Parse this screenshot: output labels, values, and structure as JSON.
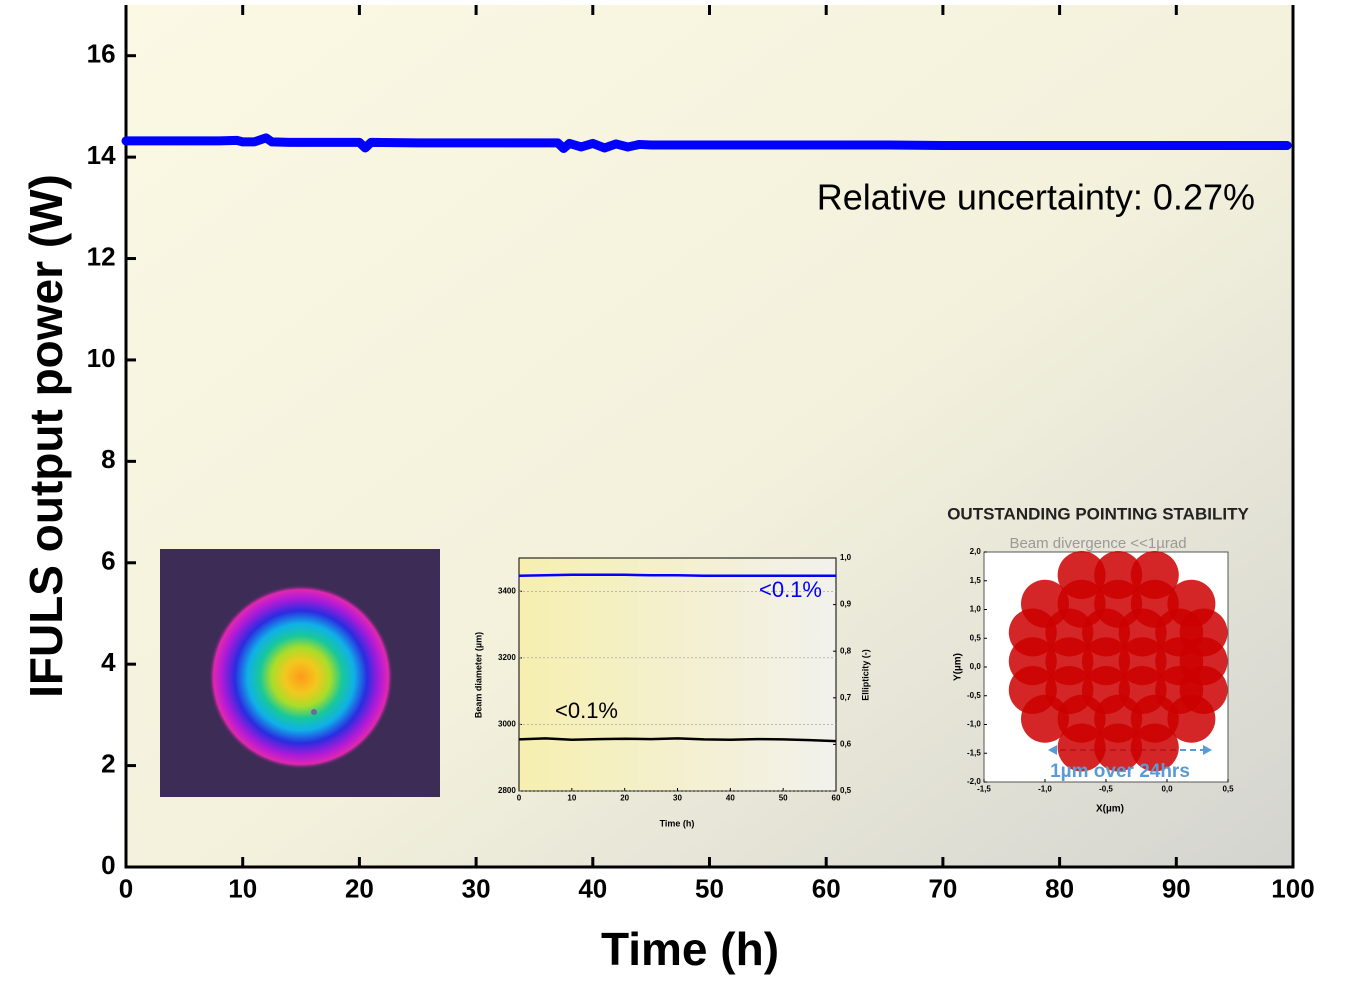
{
  "chart_data": [
    {
      "type": "line",
      "xlabel": "Time (h)",
      "ylabel": "IFULS output power (W)",
      "annotation": "Relative uncertainty: 0.27%",
      "xlim": [
        0,
        100
      ],
      "ylim": [
        0,
        17
      ],
      "xticks": [
        0,
        10,
        20,
        30,
        40,
        50,
        60,
        70,
        80,
        90,
        100
      ],
      "yticks": [
        0,
        2,
        4,
        6,
        8,
        10,
        12,
        14,
        16
      ],
      "series": [
        {
          "color": "#0000ff",
          "x": [
            0,
            2,
            4,
            6,
            8,
            9.5,
            10,
            11,
            12,
            12.5,
            14,
            16,
            18,
            20,
            20.5,
            21,
            25,
            30,
            35,
            37,
            37.5,
            38,
            39,
            40,
            41,
            42,
            43,
            44,
            45,
            50,
            55,
            60,
            65,
            70,
            75,
            80,
            85,
            90,
            95,
            99.5
          ],
          "values": [
            14.32,
            14.32,
            14.32,
            14.32,
            14.32,
            14.33,
            14.3,
            14.3,
            14.38,
            14.3,
            14.29,
            14.29,
            14.29,
            14.29,
            14.18,
            14.29,
            14.28,
            14.28,
            14.28,
            14.28,
            14.17,
            14.27,
            14.2,
            14.27,
            14.18,
            14.26,
            14.2,
            14.25,
            14.24,
            14.24,
            14.24,
            14.24,
            14.24,
            14.23,
            14.23,
            14.23,
            14.23,
            14.23,
            14.23,
            14.23
          ]
        }
      ]
    },
    {
      "type": "dual-line",
      "xlabel": "Time (h)",
      "ylabel": "Beam diameter (µm)",
      "y2label": "Ellipticity (-)",
      "annotations": [
        "<0.1%",
        "<0.1%"
      ],
      "x": [
        0,
        5,
        10,
        15,
        20,
        25,
        30,
        35,
        40,
        45,
        50,
        55,
        60
      ],
      "xlim": [
        0,
        60
      ],
      "xticks": [
        0,
        10,
        20,
        30,
        40,
        50,
        60
      ],
      "ylim": [
        2800,
        3500
      ],
      "yticks": [
        2800,
        3000,
        3200,
        3400
      ],
      "y2lim": [
        0.5,
        1.0
      ],
      "y2ticks": [
        {
          "value": 0.5,
          "label": "0,5"
        },
        {
          "value": 0.6,
          "label": "0,6"
        },
        {
          "value": 0.7,
          "label": "0,7"
        },
        {
          "value": 0.8,
          "label": "0,8"
        },
        {
          "value": 0.9,
          "label": "0,9"
        },
        {
          "value": 1.0,
          "label": "1,0"
        }
      ],
      "series": [
        {
          "color": "#0000ff",
          "axis": "y2",
          "values": [
            0.962,
            0.963,
            0.964,
            0.964,
            0.964,
            0.963,
            0.963,
            0.962,
            0.962,
            0.962,
            0.962,
            0.962,
            0.962
          ]
        },
        {
          "color": "#000000",
          "values": [
            2955,
            2958,
            2954,
            2956,
            2957,
            2956,
            2958,
            2955,
            2954,
            2956,
            2955,
            2953,
            2950
          ]
        }
      ]
    },
    {
      "type": "scatter",
      "title": "OUTSTANDING POINTING STABILITY",
      "subtitle": "Beam divergence <<1µrad",
      "annotation": "1µm over 24hrs",
      "xlabel": "X(µm)",
      "ylabel": "Y(µm)",
      "xlim": [
        -1.5,
        0.5
      ],
      "xticks": [
        {
          "value": -1.5,
          "label": "-1,5"
        },
        {
          "value": -1.0,
          "label": "-1,0"
        },
        {
          "value": -0.5,
          "label": "-0,5"
        },
        {
          "value": 0,
          "label": "0,0"
        },
        {
          "value": 0.5,
          "label": "0,5"
        }
      ],
      "ylim": [
        -2,
        2
      ],
      "yticks": [
        {
          "value": -2,
          "label": "-2,0"
        },
        {
          "value": -1.5,
          "label": "-1,5"
        },
        {
          "value": -1,
          "label": "-1,0"
        },
        {
          "value": -0.5,
          "label": "-0,5"
        },
        {
          "value": 0,
          "label": "0,0"
        },
        {
          "value": 0.5,
          "label": "0,5"
        },
        {
          "value": 1,
          "label": "1,0"
        },
        {
          "value": 1.5,
          "label": "1,5"
        },
        {
          "value": 2,
          "label": "2,0"
        }
      ],
      "series": [
        {
          "color": "#cc0000",
          "x": [
            -0.7,
            -0.4,
            -0.1,
            -1.0,
            -0.7,
            -0.4,
            -0.1,
            0.2,
            -1.1,
            -0.8,
            -0.5,
            -0.2,
            0.1,
            0.3,
            -1.1,
            -0.8,
            -0.5,
            -0.2,
            0.1,
            0.3,
            -1.1,
            -0.8,
            -0.5,
            -0.2,
            0.1,
            0.3,
            -1.0,
            -0.7,
            -0.4,
            -0.1,
            0.2,
            -0.7,
            -0.4,
            -0.1
          ],
          "values": [
            1.6,
            1.6,
            1.6,
            1.1,
            1.1,
            1.1,
            1.1,
            1.1,
            0.6,
            0.6,
            0.6,
            0.6,
            0.6,
            0.6,
            0.1,
            0.1,
            0.1,
            0.1,
            0.1,
            0.1,
            -0.4,
            -0.4,
            -0.4,
            -0.4,
            -0.4,
            -0.4,
            -0.9,
            -0.9,
            -0.9,
            -0.9,
            -0.9,
            -1.4,
            -1.4,
            -1.4
          ]
        }
      ]
    }
  ]
}
